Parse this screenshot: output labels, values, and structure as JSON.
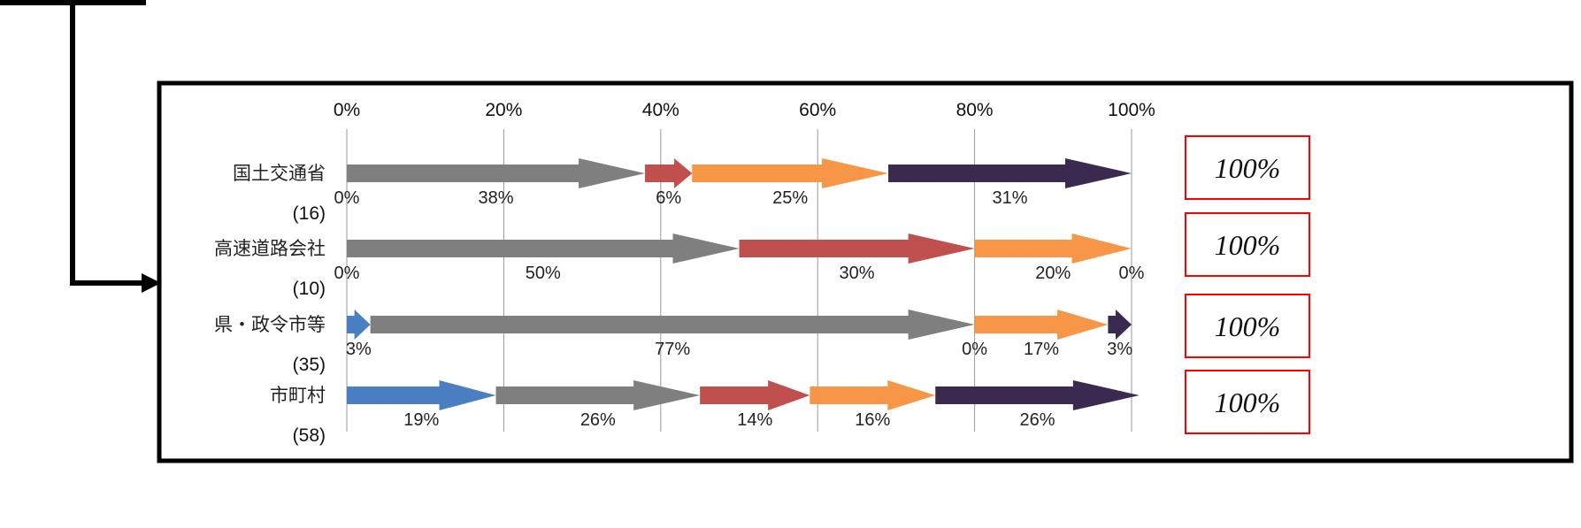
{
  "chart_data": {
    "type": "bar",
    "stacked": true,
    "percent_axis": true,
    "orientation": "horizontal",
    "mark_style": "arrow",
    "x_tick_labels": [
      "0%",
      "20%",
      "40%",
      "60%",
      "80%",
      "100%"
    ],
    "xlim": [
      0,
      100
    ],
    "grid": true,
    "categories": [
      {
        "label": "国土交通省",
        "count": "(16)"
      },
      {
        "label": "高速道路会社",
        "count": "(10)"
      },
      {
        "label": "県・政令市等",
        "count": "(35)"
      },
      {
        "label": "市町村",
        "count": "(58)"
      }
    ],
    "series": [
      {
        "color": "#4a7fc1",
        "values": [
          0,
          0,
          3,
          19
        ],
        "labels": [
          "0%",
          "0%",
          "3%",
          "19%"
        ]
      },
      {
        "color": "#7f7f7f",
        "values": [
          38,
          50,
          77,
          26
        ],
        "labels": [
          "38%",
          "50%",
          "77%",
          "26%"
        ]
      },
      {
        "color": "#c0504d",
        "values": [
          6,
          30,
          0,
          14
        ],
        "labels": [
          "6%",
          "30%",
          "0%",
          "14%"
        ]
      },
      {
        "color": "#f79646",
        "values": [
          25,
          20,
          17,
          16
        ],
        "labels": [
          "25%",
          "20%",
          "17%",
          "16%"
        ]
      },
      {
        "color": "#3b2a4f",
        "values": [
          31,
          0,
          3,
          26
        ],
        "labels": [
          "31%",
          "0%",
          "3%",
          "26%"
        ]
      }
    ],
    "totals": [
      "100%",
      "100%",
      "100%",
      "100%"
    ]
  }
}
